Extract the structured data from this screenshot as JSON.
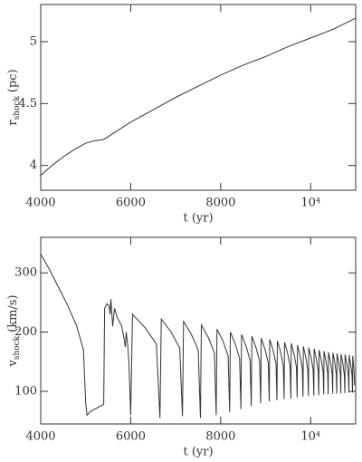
{
  "chart_data": [
    {
      "type": "line",
      "xlabel": "t (yr)",
      "ylabel": "r",
      "ylabel_sub": "shock",
      "ylabel_unit": "(pc)",
      "xlim": [
        4000,
        11000
      ],
      "xticks": [
        4000,
        6000,
        8000,
        {
          "value": 10000,
          "label": "10⁴"
        }
      ],
      "ylim": [
        3.8,
        5.3
      ],
      "yticks": [
        4,
        4.5,
        5
      ],
      "color": "#333333",
      "x": [
        4000,
        4250,
        4500,
        4750,
        5000,
        5200,
        5400,
        5700,
        6000,
        6300,
        6600,
        7000,
        7500,
        8000,
        8500,
        9000,
        9500,
        10000,
        10500,
        11000
      ],
      "values": [
        3.92,
        4.0,
        4.07,
        4.13,
        4.18,
        4.2,
        4.21,
        4.28,
        4.35,
        4.41,
        4.47,
        4.55,
        4.64,
        4.73,
        4.81,
        4.88,
        4.96,
        5.03,
        5.1,
        5.19
      ]
    },
    {
      "type": "line",
      "xlabel": "t (yr)",
      "ylabel": "v",
      "ylabel_sub": "shock",
      "ylabel_unit": "(km/s)",
      "xlim": [
        4000,
        11000
      ],
      "xticks": [
        4000,
        6000,
        8000,
        {
          "value": 10000,
          "label": "10⁴"
        }
      ],
      "ylim": [
        45,
        360
      ],
      "yticks": [
        100,
        200,
        300
      ],
      "color": "#333333",
      "x": [
        4000,
        4200,
        4400,
        4600,
        4800,
        4950,
        5000,
        5030,
        5100,
        5200,
        5300,
        5400,
        5420,
        5470,
        5520,
        5540,
        5560,
        5600,
        5640,
        5700,
        5800,
        5850,
        5880,
        5900,
        5930,
        5960,
        6000,
        6040,
        6325,
        6570,
        6650,
        6680,
        6900,
        7090,
        7150,
        7175,
        7350,
        7500,
        7550,
        7570,
        7725,
        7860,
        7900,
        7918,
        8050,
        8165,
        8200,
        8215,
        8325,
        8420,
        8450,
        8464,
        8565,
        8652,
        8680,
        8693,
        8785,
        8865,
        8890,
        8901,
        8985,
        9057,
        9080,
        9090,
        9165,
        9230,
        9250,
        9260,
        9330,
        9391,
        9410,
        9419,
        9485,
        9542,
        9560,
        9568,
        9630,
        9683,
        9700,
        9708,
        9765,
        9814,
        9830,
        9837,
        9890,
        9935,
        9950,
        9957,
        10010,
        10055,
        10070,
        10077,
        10125,
        10167,
        10180,
        10187,
        10235,
        10277,
        10290,
        10296,
        10340,
        10378,
        10390,
        10396,
        10440,
        10478,
        10490,
        10495,
        10535,
        10569,
        10580,
        10585,
        10625,
        10659,
        10670,
        10675,
        10715,
        10749,
        10760,
        10765,
        10805,
        10839,
        10850,
        10855,
        10890,
        10920,
        10930,
        10935,
        10960,
        10975
      ],
      "values": [
        332,
        305,
        275,
        245,
        210,
        170,
        80,
        60,
        66,
        70,
        74,
        78,
        240,
        248,
        245,
        230,
        256,
        210,
        240,
        225,
        210,
        190,
        175,
        200,
        180,
        150,
        60,
        230,
        207,
        180,
        55,
        222,
        200,
        173,
        58,
        218,
        196,
        170,
        55,
        212,
        191,
        165,
        60,
        205,
        185,
        160,
        65,
        200,
        180,
        156,
        70,
        196,
        176,
        153,
        75,
        193,
        174,
        151,
        80,
        190,
        171,
        148,
        83,
        188,
        169,
        147,
        85,
        185,
        167,
        144,
        87,
        183,
        165,
        143,
        88,
        181,
        163,
        141,
        90,
        178,
        160,
        139,
        91,
        176,
        158,
        137,
        92,
        174,
        157,
        136,
        93,
        172,
        155,
        134,
        94,
        170,
        153,
        133,
        95,
        168,
        151,
        131,
        95,
        166,
        149,
        129,
        96,
        165,
        149,
        129,
        96,
        164,
        148,
        128,
        97,
        163,
        147,
        127,
        97,
        162,
        146,
        126,
        98,
        161,
        145,
        126,
        98,
        160,
        140,
        110
      ]
    }
  ]
}
